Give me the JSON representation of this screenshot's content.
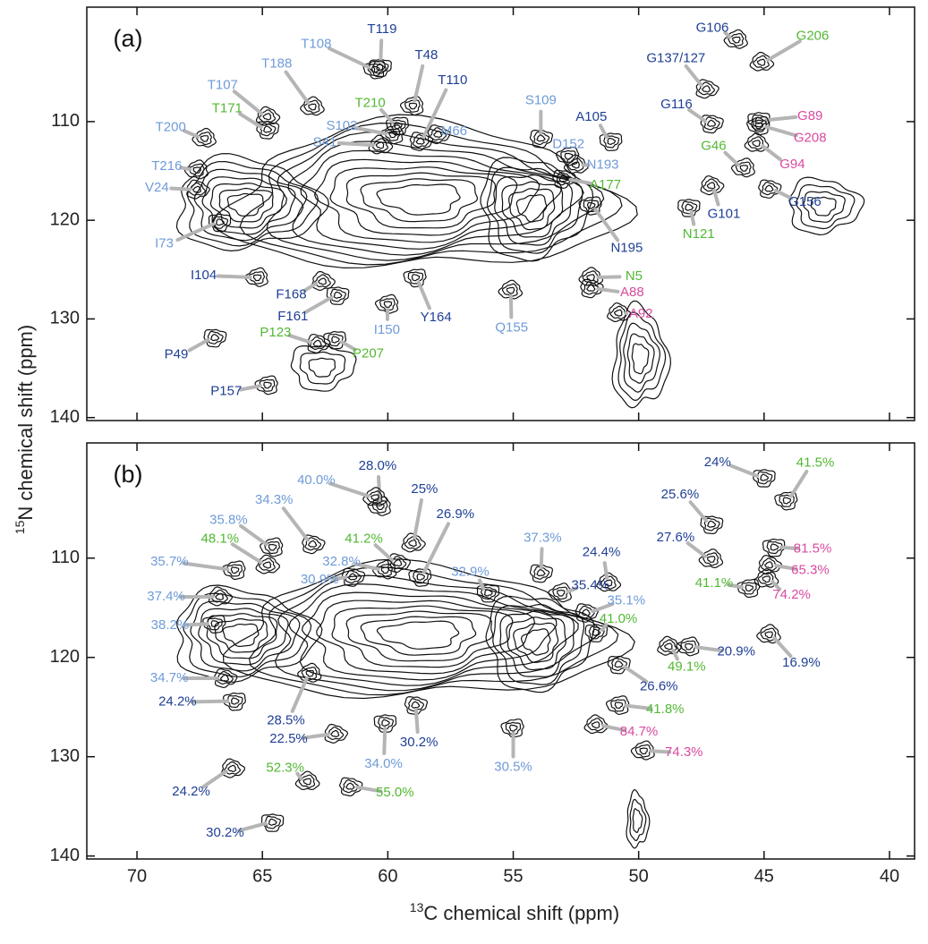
{
  "chart_data": [
    {
      "type": "contour",
      "panel_label": "(a)",
      "xlim": [
        72,
        39
      ],
      "ylim": [
        98.4,
        140.3
      ],
      "xticks": [
        70,
        65,
        60,
        55,
        50,
        45,
        40
      ],
      "yticks": [
        110,
        120,
        130,
        140
      ],
      "ylabel": {
        "superscript": "15",
        "text": "N chemical shift  (ppm)"
      },
      "peaks": [
        {
          "label": "T119",
          "color": "#1f3f95",
          "x": 60.3,
          "y": 104.5
        },
        {
          "label": "T108",
          "color": "#6f9bd8",
          "x": 60.5,
          "y": 104.7
        },
        {
          "label": "T48",
          "color": "#1f3f95",
          "x": 59.0,
          "y": 108.4
        },
        {
          "label": "T188",
          "color": "#6f9bd8",
          "x": 63.0,
          "y": 108.5
        },
        {
          "label": "T107",
          "color": "#6f9bd8",
          "x": 64.8,
          "y": 109.5
        },
        {
          "label": "T110",
          "color": "#1f3f95",
          "x": 58.7,
          "y": 112.0
        },
        {
          "label": "T171",
          "color": "#52b833",
          "x": 64.8,
          "y": 110.8
        },
        {
          "label": "T210",
          "color": "#52b833",
          "x": 59.6,
          "y": 110.4
        },
        {
          "label": "S102",
          "color": "#6f9bd8",
          "x": 59.8,
          "y": 111.3
        },
        {
          "label": "T200",
          "color": "#6f9bd8",
          "x": 67.3,
          "y": 111.7
        },
        {
          "label": "S41",
          "color": "#6f9bd8",
          "x": 60.3,
          "y": 112.4
        },
        {
          "label": "M66",
          "color": "#6f9bd8",
          "x": 58.0,
          "y": 111.3
        },
        {
          "label": "S109",
          "color": "#6f9bd8",
          "x": 53.9,
          "y": 111.7
        },
        {
          "label": "A105",
          "color": "#1f3f95",
          "x": 51.1,
          "y": 112.0
        },
        {
          "label": "D152",
          "color": "#6f9bd8",
          "x": 52.8,
          "y": 113.5
        },
        {
          "label": "T216",
          "color": "#6f9bd8",
          "x": 67.6,
          "y": 114.9
        },
        {
          "label": "N193",
          "color": "#6f9bd8",
          "x": 52.5,
          "y": 114.4
        },
        {
          "label": "V24",
          "color": "#6f9bd8",
          "x": 67.6,
          "y": 116.9
        },
        {
          "label": "A177",
          "color": "#52b833",
          "x": 53.0,
          "y": 115.8
        },
        {
          "label": "I73",
          "color": "#6f9bd8",
          "x": 66.7,
          "y": 120.2
        },
        {
          "label": "N195",
          "color": "#1f3f95",
          "x": 51.9,
          "y": 118.5
        },
        {
          "label": "I104",
          "color": "#1f3f95",
          "x": 65.2,
          "y": 125.8
        },
        {
          "label": "N5",
          "color": "#52b833",
          "x": 51.9,
          "y": 125.8
        },
        {
          "label": "F168",
          "color": "#1f3f95",
          "x": 62.6,
          "y": 126.2
        },
        {
          "label": "A88",
          "color": "#d94aa0",
          "x": 51.9,
          "y": 126.9
        },
        {
          "label": "F161",
          "color": "#1f3f95",
          "x": 62.0,
          "y": 127.6
        },
        {
          "label": "Y164",
          "color": "#1f3f95",
          "x": 58.9,
          "y": 125.8
        },
        {
          "label": "I150",
          "color": "#6f9bd8",
          "x": 60.0,
          "y": 128.5
        },
        {
          "label": "Q155",
          "color": "#6f9bd8",
          "x": 55.1,
          "y": 127.1
        },
        {
          "label": "A92",
          "color": "#d94aa0",
          "x": 50.8,
          "y": 129.4
        },
        {
          "label": "P123",
          "color": "#52b833",
          "x": 62.8,
          "y": 132.5
        },
        {
          "label": "P49",
          "color": "#1f3f95",
          "x": 66.9,
          "y": 131.9
        },
        {
          "label": "P207",
          "color": "#52b833",
          "x": 62.1,
          "y": 132.1
        },
        {
          "label": "P157",
          "color": "#1f3f95",
          "x": 64.8,
          "y": 136.7
        },
        {
          "label": "G106",
          "color": "#1f3f95",
          "x": 46.1,
          "y": 101.7
        },
        {
          "label": "G206",
          "color": "#52b833",
          "x": 45.1,
          "y": 104.0
        },
        {
          "label": "G137/127",
          "color": "#1f3f95",
          "x": 47.3,
          "y": 106.7
        },
        {
          "label": "G116",
          "color": "#1f3f95",
          "x": 47.1,
          "y": 110.2
        },
        {
          "label": "G89",
          "color": "#d94aa0",
          "x": 45.2,
          "y": 109.9
        },
        {
          "label": "G208",
          "color": "#d94aa0",
          "x": 45.2,
          "y": 110.4
        },
        {
          "label": "G46",
          "color": "#52b833",
          "x": 45.8,
          "y": 114.7
        },
        {
          "label": "G94",
          "color": "#d94aa0",
          "x": 45.3,
          "y": 112.2
        },
        {
          "label": "G101",
          "color": "#1f3f95",
          "x": 47.1,
          "y": 116.5
        },
        {
          "label": "G156",
          "color": "#1f3f95",
          "x": 44.8,
          "y": 116.8
        },
        {
          "label": "N121",
          "color": "#52b833",
          "x": 48.0,
          "y": 118.7
        }
      ]
    },
    {
      "type": "contour",
      "panel_label": "(b)",
      "xlim": [
        72,
        39
      ],
      "ylim": [
        98.4,
        140.3
      ],
      "xticks": [
        70,
        65,
        60,
        55,
        50,
        45,
        40
      ],
      "yticks": [
        110,
        120,
        130,
        140
      ],
      "xlabel": {
        "superscript": "13",
        "text": "C chemical shift  (ppm)"
      },
      "peaks": [
        {
          "label": "24%",
          "color": "#1f3f95",
          "x": 45.0,
          "y": 101.9
        },
        {
          "label": "41.5%",
          "color": "#52b833",
          "x": 44.1,
          "y": 104.2
        },
        {
          "label": "28.0%",
          "color": "#1f3f95",
          "x": 60.3,
          "y": 104.8
        },
        {
          "label": "40.0%",
          "color": "#6f9bd8",
          "x": 60.5,
          "y": 103.9
        },
        {
          "label": "25%",
          "color": "#1f3f95",
          "x": 59.0,
          "y": 108.5
        },
        {
          "label": "34.3%",
          "color": "#6f9bd8",
          "x": 63.0,
          "y": 108.6
        },
        {
          "label": "25.6%",
          "color": "#1f3f95",
          "x": 47.1,
          "y": 106.6
        },
        {
          "label": "26.9%",
          "color": "#1f3f95",
          "x": 58.7,
          "y": 111.9
        },
        {
          "label": "35.8%",
          "color": "#6f9bd8",
          "x": 64.6,
          "y": 108.9
        },
        {
          "label": "27.6%",
          "color": "#1f3f95",
          "x": 47.1,
          "y": 110.1
        },
        {
          "label": "48.1%",
          "color": "#52b833",
          "x": 64.8,
          "y": 110.7
        },
        {
          "label": "41.2%",
          "color": "#52b833",
          "x": 59.6,
          "y": 110.5
        },
        {
          "label": "37.3%",
          "color": "#6f9bd8",
          "x": 53.9,
          "y": 111.5
        },
        {
          "label": "81.5%",
          "color": "#d94aa0",
          "x": 44.6,
          "y": 108.9
        },
        {
          "label": "35.7%",
          "color": "#6f9bd8",
          "x": 66.1,
          "y": 111.2
        },
        {
          "label": "32.8%",
          "color": "#6f9bd8",
          "x": 60.1,
          "y": 111.2
        },
        {
          "label": "24.4%",
          "color": "#1f3f95",
          "x": 51.2,
          "y": 112.5
        },
        {
          "label": "65.3%",
          "color": "#d94aa0",
          "x": 44.8,
          "y": 110.7
        },
        {
          "label": "30.9%",
          "color": "#6f9bd8",
          "x": 61.4,
          "y": 111.9
        },
        {
          "label": "32.9%",
          "color": "#6f9bd8",
          "x": 56.0,
          "y": 113.5
        },
        {
          "label": "41.1%",
          "color": "#52b833",
          "x": 45.6,
          "y": 113.0
        },
        {
          "label": "35.4%",
          "color": "#1f3f95",
          "x": 53.1,
          "y": 113.5
        },
        {
          "label": "74.2%",
          "color": "#d94aa0",
          "x": 44.9,
          "y": 112.1
        },
        {
          "label": "37.4%",
          "color": "#6f9bd8",
          "x": 66.7,
          "y": 113.9
        },
        {
          "label": "35.1%",
          "color": "#6f9bd8",
          "x": 52.1,
          "y": 115.5
        },
        {
          "label": "41.0%",
          "color": "#52b833",
          "x": 51.7,
          "y": 117.5
        },
        {
          "label": "38.2%",
          "color": "#6f9bd8",
          "x": 66.9,
          "y": 116.6
        },
        {
          "label": "20.9%",
          "color": "#1f3f95",
          "x": 48.0,
          "y": 118.9
        },
        {
          "label": "16.9%",
          "color": "#1f3f95",
          "x": 44.8,
          "y": 117.7
        },
        {
          "label": "49.1%",
          "color": "#52b833",
          "x": 48.8,
          "y": 118.9
        },
        {
          "label": "34.7%",
          "color": "#6f9bd8",
          "x": 66.5,
          "y": 122.1
        },
        {
          "label": "26.6%",
          "color": "#1f3f95",
          "x": 50.8,
          "y": 120.7
        },
        {
          "label": "24.2%",
          "color": "#1f3f95",
          "x": 66.1,
          "y": 124.4
        },
        {
          "label": "41.8%",
          "color": "#52b833",
          "x": 50.8,
          "y": 124.8
        },
        {
          "label": "28.5%",
          "color": "#1f3f95",
          "x": 63.1,
          "y": 121.6
        },
        {
          "label": "84.7%",
          "color": "#d94aa0",
          "x": 51.7,
          "y": 126.8
        },
        {
          "label": "22.5%",
          "color": "#1f3f95",
          "x": 62.1,
          "y": 127.7
        },
        {
          "label": "30.2%",
          "color": "#1f3f95",
          "x": 58.9,
          "y": 124.8
        },
        {
          "label": "34.0%",
          "color": "#6f9bd8",
          "x": 60.1,
          "y": 126.6
        },
        {
          "label": "30.5%",
          "color": "#6f9bd8",
          "x": 55.0,
          "y": 127.1
        },
        {
          "label": "74.3%",
          "color": "#d94aa0",
          "x": 49.8,
          "y": 129.4
        },
        {
          "label": "52.3%",
          "color": "#52b833",
          "x": 63.2,
          "y": 132.5
        },
        {
          "label": "24.2%",
          "color": "#1f3f95",
          "x": 66.2,
          "y": 131.2
        },
        {
          "label": "55.0%",
          "color": "#52b833",
          "x": 61.5,
          "y": 133.0
        },
        {
          "label": "30.2%",
          "color": "#1f3f95",
          "x": 64.6,
          "y": 136.6
        }
      ]
    }
  ]
}
